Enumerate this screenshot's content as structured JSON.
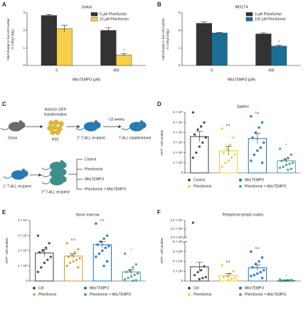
{
  "chart_data": [
    {
      "type": "bar",
      "panel_label": "A",
      "title": "Jurkat",
      "xlabel": "MitoTEMPO (μM)",
      "ylabel": [
        "Fold change in live cell number",
        "in 3 days (log₂)"
      ],
      "categories": [
        "0",
        "400"
      ],
      "series": [
        {
          "name": "0 μM Phenformin",
          "color": "#333333",
          "values": [
            2.85,
            2.0
          ],
          "errors": [
            0.06,
            0.15
          ]
        },
        {
          "name": "10 μM Phenformin",
          "color": "#f7d04a",
          "values": [
            2.1,
            0.6
          ],
          "errors": [
            0.2,
            0.07
          ],
          "significance": [
            null,
            "*"
          ]
        }
      ],
      "ylim": [
        0,
        3
      ],
      "yticks": [
        0,
        1,
        2,
        3
      ]
    },
    {
      "type": "bar",
      "panel_label": "B",
      "title": "MOLT4",
      "xlabel": "MitoTEMPO (μM)",
      "ylabel": [
        "Fold change in live cell number",
        "in 3 days (log₂)"
      ],
      "categories": [
        "0",
        "400"
      ],
      "series": [
        {
          "name": "0 μM Phenformin",
          "color": "#333333",
          "values": [
            2.4,
            1.8
          ],
          "errors": [
            0.08,
            0.06
          ]
        },
        {
          "name": "100 μM Phenformin",
          "color": "#1b6f96",
          "values": [
            1.85,
            1.1
          ],
          "errors": [
            0.03,
            0.06
          ],
          "significance": [
            null,
            "*"
          ]
        }
      ],
      "ylim": [
        0,
        3
      ],
      "yticks": [
        0,
        1,
        2,
        3
      ]
    },
    {
      "type": "scatterbar",
      "panel_label": "D",
      "title": "Spleen",
      "ylabel": "GFP⁺ cell number",
      "categories": [
        "Control",
        "Phenformin",
        "MitoTEMPO",
        "Phenformin + MitoTEMPO"
      ],
      "colors": [
        "#3b3b3b",
        "#f2c832",
        "#1a75b0",
        "#4f9494"
      ],
      "markers": [
        "circle",
        "diamond",
        "square",
        "circle"
      ],
      "values": [
        36000000,
        22000000,
        34000000,
        12000000
      ],
      "errors": [
        5000000,
        4500000,
        5000000,
        2000000
      ],
      "significance": [
        null,
        "n.s.",
        "n.s.",
        "*"
      ],
      "points": [
        [
          60000000,
          50000000,
          46000000,
          43000000,
          38000000,
          35000000,
          30000000,
          26000000,
          20000000,
          15000000
        ],
        [
          44000000,
          35000000,
          28000000,
          24000000,
          20000000,
          18000000,
          15000000,
          12000000,
          10000000,
          6000000
        ],
        [
          56000000,
          50000000,
          45000000,
          40000000,
          35000000,
          30000000,
          25000000,
          22000000,
          18000000,
          12000000,
          10000000
        ],
        [
          24000000,
          18000000,
          15000000,
          13000000,
          12000000,
          10000000,
          9000000,
          8000000,
          6000000,
          5000000,
          4000000,
          3000000
        ]
      ],
      "ylim": [
        0,
        60000000
      ],
      "yticks": [
        0,
        {
          "value": 10000000,
          "label": "1 × 10⁷"
        },
        {
          "value": 20000000,
          "label": "2 × 10⁷"
        },
        {
          "value": 30000000,
          "label": "3 × 10⁷"
        },
        {
          "value": 40000000,
          "label": "4 × 10⁷"
        },
        {
          "value": 50000000,
          "label": "5 × 10⁷"
        },
        {
          "value": 60000000,
          "label": "6 × 10⁷"
        }
      ]
    },
    {
      "type": "scatterbar",
      "panel_label": "E",
      "title": "Bone marrow",
      "ylabel": "GFP⁺ cell number",
      "categories": [
        "Ctrl",
        "Phenformin",
        "MitoTEMPO",
        "Phenformin + MitoTEMPO"
      ],
      "colors": [
        "#3b3b3b",
        "#c9a227",
        "#1a75b0",
        "#4f9494"
      ],
      "markers": [
        "circle",
        "diamond",
        "square",
        "circle"
      ],
      "values": [
        18500000,
        16500000,
        24000000,
        6000000
      ],
      "errors": [
        2500000,
        1500000,
        2000000,
        1500000
      ],
      "significance": [
        null,
        "n.s.",
        "n.s.",
        "*"
      ],
      "points": [
        [
          30000000,
          25000000,
          22000000,
          20000000,
          19000000,
          16000000,
          14000000,
          12000000,
          9000000,
          6000000
        ],
        [
          25000000,
          21000000,
          19000000,
          17000000,
          16000000,
          15000000,
          14000000,
          13000000,
          12000000,
          10000000,
          9000000
        ],
        [
          38000000,
          30000000,
          28000000,
          26000000,
          24000000,
          23000000,
          22000000,
          20000000,
          18000000,
          16000000,
          13000000,
          10000000
        ],
        [
          18000000,
          11000000,
          9000000,
          7000000,
          6000000,
          5000000,
          4000000,
          3000000,
          2000000,
          1000000,
          500000,
          200000
        ]
      ],
      "ylim": [
        0,
        40000000
      ],
      "yticks": [
        0,
        {
          "value": 10000000,
          "label": "1 × 10⁷"
        },
        {
          "value": 20000000,
          "label": "2 × 10⁷"
        },
        {
          "value": 30000000,
          "label": "3 × 10⁷"
        },
        {
          "value": 40000000,
          "label": "4 × 10⁷"
        }
      ]
    },
    {
      "type": "scatterbar",
      "panel_label": "F",
      "title": "Peripheral lymph nodes",
      "ylabel": "GFP⁺ cell number",
      "categories": [
        "Ctrl",
        "Phenformin",
        "MitoTEMPO",
        "Phenformin + MitoTEMPO"
      ],
      "colors": [
        "#3b3b3b",
        "#f2c832",
        "#1a75b0",
        "#4f9494"
      ],
      "markers": [
        "circle",
        "diamond",
        "square",
        "circle"
      ],
      "values": [
        290000,
        110000,
        270000,
        10000
      ],
      "errors": [
        90000,
        40000,
        60000,
        5000
      ],
      "significance": [
        null,
        "n.s.",
        "n.s.",
        "*"
      ],
      "points": [
        [
          1350000,
          300000,
          220000,
          180000,
          120000,
          80000,
          60000,
          40000
        ],
        [
          320000,
          200000,
          150000,
          100000,
          80000,
          60000,
          40000,
          20000
        ],
        [
          600000,
          480000,
          400000,
          350000,
          280000,
          220000,
          180000,
          150000,
          120000,
          100000,
          60000
        ],
        [
          30000,
          20000,
          15000,
          10000,
          8000,
          5000,
          3000,
          2000,
          1000,
          500
        ]
      ],
      "ylim": [
        0,
        1400000
      ],
      "ybreak": [
        800000,
        1000000
      ],
      "yticks": [
        0,
        {
          "value": 200000,
          "label": "2 × 10⁵"
        },
        {
          "value": 400000,
          "label": "4 × 10⁵"
        },
        {
          "value": 600000,
          "label": "6 × 10⁵"
        },
        {
          "value": 800000,
          "label": "8 × 10⁵"
        },
        {
          "value": 1000000,
          "label": "1.0 × 10⁶"
        },
        {
          "value": 1200000,
          "label": "1.2 × 10⁶"
        },
        {
          "value": 1400000,
          "label": "1.4 × 10⁶"
        }
      ]
    }
  ],
  "diagram": {
    "panel_label": "C",
    "donor": "Donor",
    "construct": "Notch1ᴵᶜ-GFP",
    "transformation": "transformation",
    "hsc": "HSC",
    "weeks": "~10 weeks",
    "recipient_primary": "1° T-ALL recipient",
    "establishment": "T-ALL establishment",
    "recipient_primary_2": "1° T-ALL recipient",
    "recipient_secondary": "2° T-ALL recipient",
    "arms": [
      "Control",
      "Phenformin",
      "MitoTEMPO",
      "Phenformin + MitoTEMPO"
    ]
  }
}
